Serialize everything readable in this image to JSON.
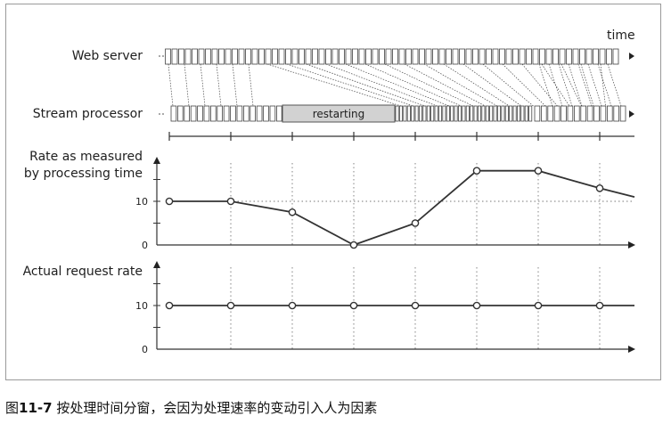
{
  "diagram": {
    "time_label": "time",
    "web_server_label": "Web server",
    "stream_processor_label": "Stream processor",
    "restarting_label": "restarting",
    "chart_data": [
      {
        "type": "line",
        "title": "Rate as measured by processing time",
        "title_lines": [
          "Rate as measured",
          "by processing time"
        ],
        "y_ticks": [
          "10",
          "0"
        ],
        "series": [
          {
            "values": [
              10,
              10,
              7.5,
              0,
              5,
              17,
              17,
              13,
              11
            ]
          }
        ]
      },
      {
        "type": "line",
        "title": "Actual request rate",
        "y_ticks": [
          "10",
          "0"
        ],
        "series": [
          {
            "values": [
              10,
              10,
              10,
              10,
              10,
              10,
              10,
              10,
              10
            ]
          }
        ]
      }
    ]
  },
  "caption": {
    "figure_number": "11-7",
    "prefix": "图",
    "text": " 按处理时间分窗，会因为处理速率的变动引入人为因素"
  }
}
